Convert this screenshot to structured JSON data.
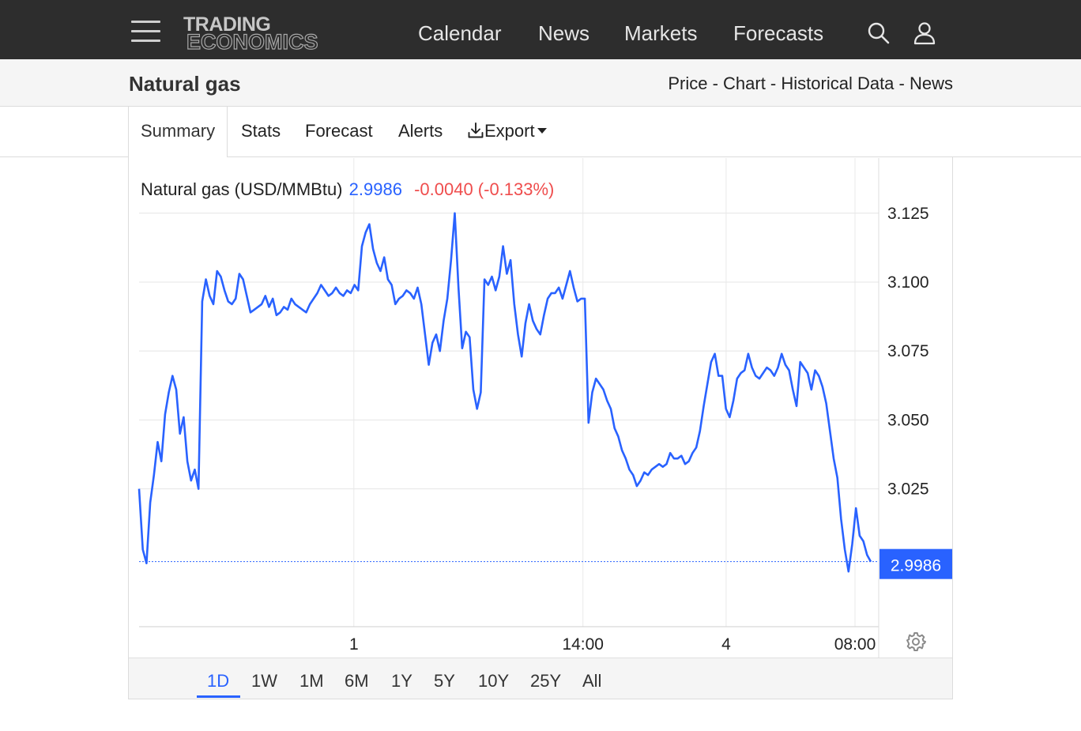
{
  "nav": {
    "logo_line1": "TRADING",
    "logo_line2": "ECONOMICS",
    "links": [
      "Calendar",
      "News",
      "Markets",
      "Forecasts"
    ],
    "icons": [
      "menu-icon",
      "search-icon",
      "user-icon"
    ]
  },
  "title_bar": {
    "title": "Natural gas",
    "crumbs": [
      "Price",
      "Chart",
      "Historical Data",
      "News"
    ],
    "separator": " - "
  },
  "tabs": {
    "summary": "Summary",
    "stats": "Stats",
    "forecast": "Forecast",
    "alerts": "Alerts",
    "export": "Export",
    "active": "Summary"
  },
  "chart_header": {
    "name": "Natural gas (USD/MMBtu)",
    "price": "2.9986",
    "change": "-0.0040 (-0.133%)"
  },
  "colors": {
    "line": "#2962ff",
    "negative": "#ef4d4d",
    "nav_bg": "#2d2d2d"
  },
  "chart_data": {
    "type": "line",
    "title": "Natural gas (USD/MMBtu)",
    "xlabel": "",
    "ylabel": "",
    "y_ticks": [
      "3.125",
      "3.100",
      "3.075",
      "3.050",
      "3.025"
    ],
    "y_tick_values": [
      3.125,
      3.1,
      3.075,
      3.05,
      3.025
    ],
    "ylim": [
      2.975,
      3.145
    ],
    "x_ticks": [
      "1",
      "14:00",
      "4",
      "08:00"
    ],
    "x_tick_positions": [
      0.3,
      0.62,
      0.82,
      1.0
    ],
    "last_value": 2.9986,
    "last_value_label": "2.9986",
    "grid": true,
    "legend": "none",
    "series": [
      {
        "values": [
          3.025,
          3.003,
          2.998,
          3.02,
          3.03,
          3.042,
          3.035,
          3.052,
          3.06,
          3.066,
          3.061,
          3.045,
          3.051,
          3.035,
          3.028,
          3.032,
          3.025,
          3.093,
          3.101,
          3.095,
          3.092,
          3.104,
          3.102,
          3.097,
          3.093,
          3.092,
          3.094,
          3.103,
          3.101,
          3.095,
          3.089,
          3.09,
          3.091,
          3.092,
          3.095,
          3.091,
          3.094,
          3.088,
          3.089,
          3.091,
          3.09,
          3.094,
          3.092,
          3.091,
          3.09,
          3.089,
          3.092,
          3.094,
          3.096,
          3.099,
          3.097,
          3.095,
          3.096,
          3.098,
          3.096,
          3.095,
          3.097,
          3.096,
          3.099,
          3.097,
          3.113,
          3.118,
          3.121,
          3.112,
          3.107,
          3.104,
          3.109,
          3.101,
          3.099,
          3.092,
          3.094,
          3.095,
          3.097,
          3.096,
          3.094,
          3.098,
          3.092,
          3.081,
          3.07,
          3.078,
          3.081,
          3.075,
          3.086,
          3.094,
          3.108,
          3.125,
          3.098,
          3.076,
          3.082,
          3.08,
          3.061,
          3.054,
          3.06,
          3.101,
          3.099,
          3.102,
          3.097,
          3.102,
          3.113,
          3.103,
          3.108,
          3.092,
          3.081,
          3.073,
          3.085,
          3.092,
          3.086,
          3.083,
          3.081,
          3.088,
          3.094,
          3.096,
          3.096,
          3.098,
          3.094,
          3.099,
          3.104,
          3.098,
          3.093,
          3.094,
          3.094,
          3.049,
          3.06,
          3.065,
          3.063,
          3.061,
          3.057,
          3.054,
          3.047,
          3.044,
          3.039,
          3.036,
          3.032,
          3.03,
          3.026,
          3.028,
          3.031,
          3.03,
          3.032,
          3.033,
          3.034,
          3.033,
          3.034,
          3.038,
          3.036,
          3.036,
          3.037,
          3.034,
          3.035,
          3.038,
          3.04,
          3.046,
          3.055,
          3.063,
          3.071,
          3.074,
          3.066,
          3.066,
          3.054,
          3.051,
          3.057,
          3.065,
          3.067,
          3.068,
          3.074,
          3.069,
          3.066,
          3.065,
          3.067,
          3.069,
          3.068,
          3.066,
          3.069,
          3.074,
          3.07,
          3.068,
          3.061,
          3.055,
          3.071,
          3.069,
          3.067,
          3.061,
          3.068,
          3.066,
          3.062,
          3.056,
          3.046,
          3.036,
          3.029,
          3.014,
          3.003,
          2.995,
          3.005,
          3.018,
          3.008,
          3.006,
          3.001,
          2.9986
        ]
      }
    ]
  },
  "ranges": {
    "items": [
      "1D",
      "1W",
      "1M",
      "6M",
      "1Y",
      "5Y",
      "10Y",
      "25Y",
      "All"
    ],
    "active": "1D"
  }
}
